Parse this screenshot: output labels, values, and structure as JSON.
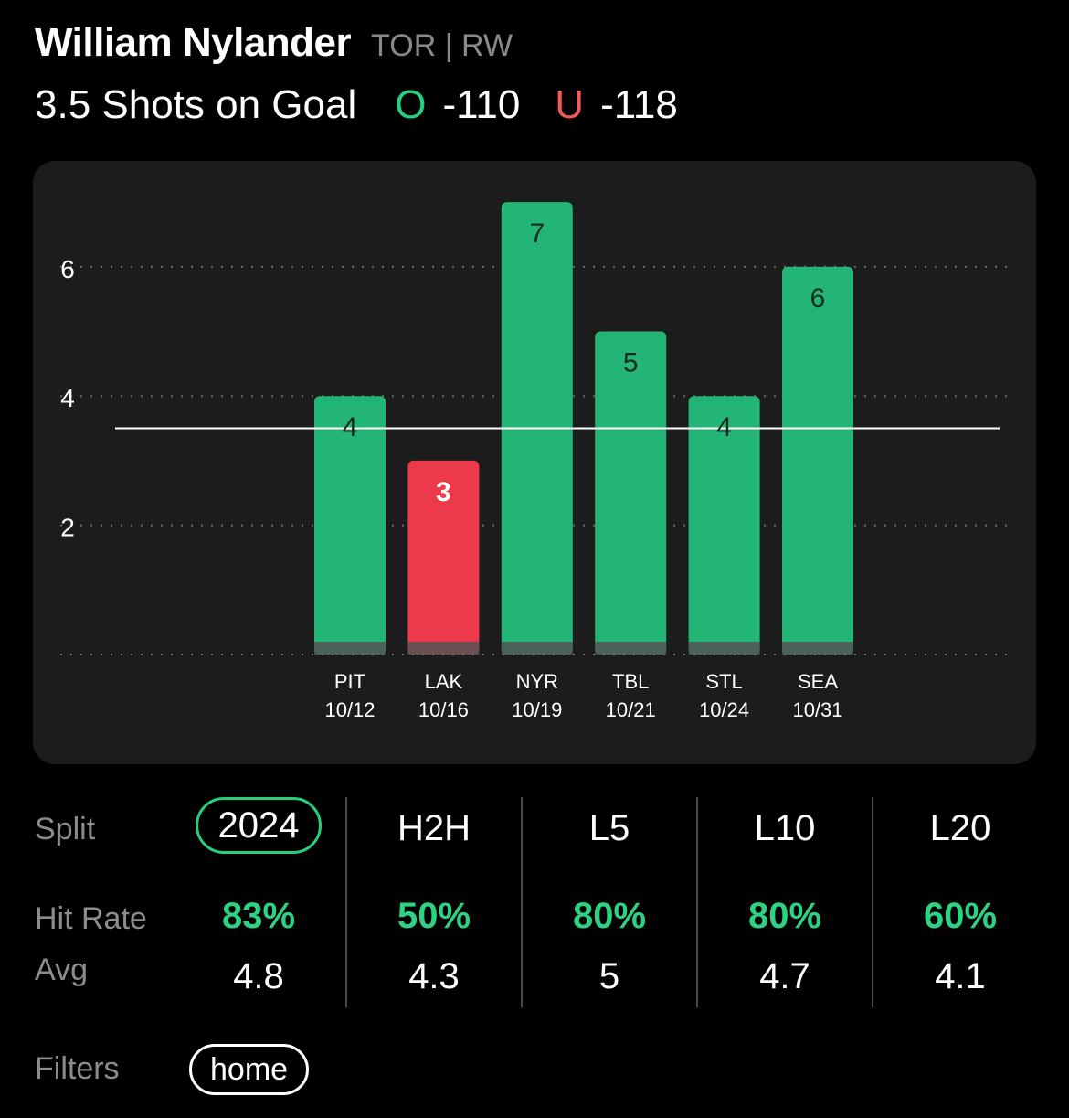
{
  "player": {
    "name": "William Nylander",
    "team_pos": "TOR | RW"
  },
  "prop": {
    "label": "3.5 Shots on Goal",
    "over_letter": "O",
    "over_odds": "-110",
    "under_letter": "U",
    "under_odds": "-118"
  },
  "colors": {
    "over": "#22b575",
    "under": "#ec3a4a",
    "accent": "#25d07e",
    "hit": "#2ed283"
  },
  "chart_data": {
    "type": "bar",
    "categories": [
      "PIT 10/12",
      "LAK 10/16",
      "NYR 10/19",
      "TBL 10/21",
      "STL 10/24",
      "SEA 10/31"
    ],
    "teams": [
      "PIT",
      "LAK",
      "NYR",
      "TBL",
      "STL",
      "SEA"
    ],
    "dates": [
      "10/12",
      "10/16",
      "10/19",
      "10/21",
      "10/24",
      "10/31"
    ],
    "values": [
      4,
      3,
      7,
      5,
      4,
      6
    ],
    "result": [
      "over",
      "under",
      "over",
      "over",
      "over",
      "over"
    ],
    "line": 3.5,
    "yticks": [
      2,
      4,
      6
    ],
    "ylim": [
      0,
      8
    ],
    "grid": true,
    "title": "",
    "xlabel": "",
    "ylabel": ""
  },
  "stats": {
    "split_label": "Split",
    "hit_rate_label": "Hit Rate",
    "avg_label": "Avg",
    "columns": [
      {
        "label": "2024",
        "hit_rate": "83%",
        "avg": "4.8"
      },
      {
        "label": "H2H",
        "hit_rate": "50%",
        "avg": "4.3"
      },
      {
        "label": "L5",
        "hit_rate": "80%",
        "avg": "5"
      },
      {
        "label": "L10",
        "hit_rate": "80%",
        "avg": "4.7"
      },
      {
        "label": "L20",
        "hit_rate": "60%",
        "avg": "4.1"
      }
    ]
  },
  "filters": {
    "label": "Filters",
    "active": "home"
  }
}
